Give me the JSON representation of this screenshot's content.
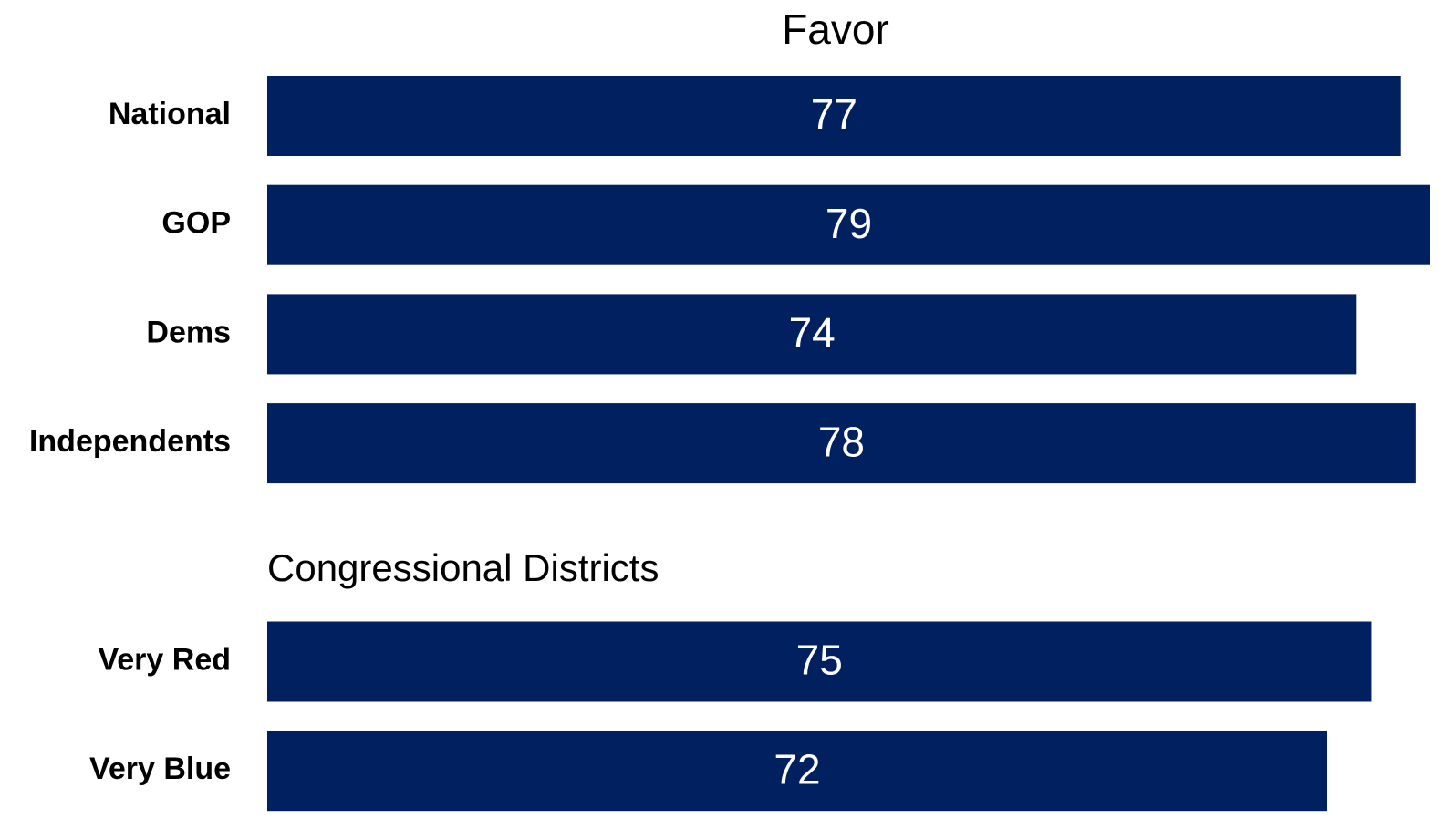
{
  "chart_data": {
    "type": "hbar",
    "title": "Favor",
    "categories": [
      "National",
      "GOP",
      "Dems",
      "Independents",
      null,
      "Very Red",
      "Very Blue"
    ],
    "values": [
      77,
      79,
      74,
      78,
      null,
      75,
      72
    ],
    "color": "#002060",
    "annotations": [
      "Congressional Districts"
    ]
  }
}
